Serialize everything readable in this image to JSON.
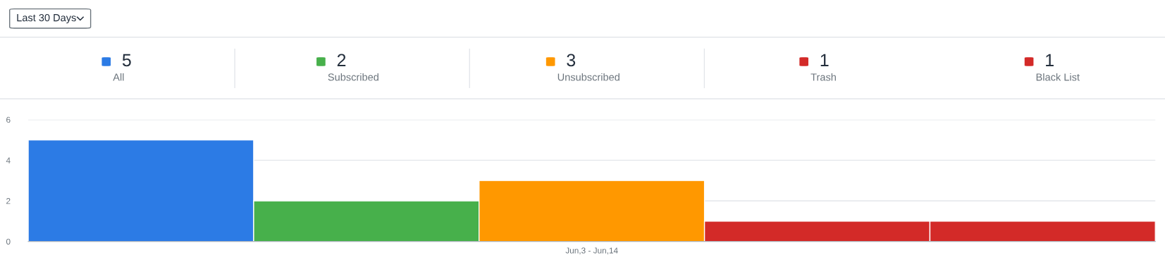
{
  "chart_data": {
    "type": "bar",
    "categories": [
      "Jun,3 - Jun,14"
    ],
    "series": [
      {
        "name": "All",
        "color": "#2c7be5",
        "values": [
          5
        ]
      },
      {
        "name": "Subscribed",
        "color": "#47b04b",
        "values": [
          2
        ]
      },
      {
        "name": "Unsubscribed",
        "color": "#ff9800",
        "values": [
          3
        ]
      },
      {
        "name": "Trash",
        "color": "#d32a28",
        "values": [
          1
        ]
      },
      {
        "name": "Black List",
        "color": "#d32a28",
        "values": [
          1
        ]
      }
    ],
    "annotations": [
      "Last 30 Days",
      "5",
      "2",
      "3",
      "1",
      "1"
    ],
    "ylim": [
      0,
      6
    ],
    "yticks": [
      0,
      2,
      4,
      6
    ],
    "grid": "y",
    "legend": "top"
  }
}
